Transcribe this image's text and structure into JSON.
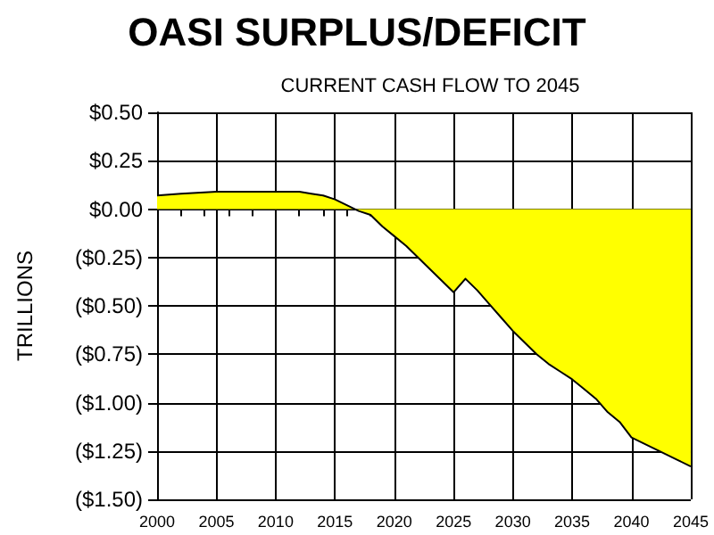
{
  "chart_data": {
    "type": "area",
    "title": "OASI SURPLUS/DEFICIT",
    "subtitle": "CURRENT CASH FLOW TO 2045",
    "ylabel": "TRILLIONS",
    "x": [
      2000,
      2002,
      2005,
      2010,
      2012,
      2013,
      2014,
      2015,
      2016,
      2017,
      2018,
      2019,
      2020,
      2021,
      2022,
      2023,
      2024,
      2025,
      2026,
      2027,
      2028,
      2029,
      2030,
      2031,
      2032,
      2033,
      2034,
      2035,
      2036,
      2037,
      2038,
      2039,
      2040,
      2041,
      2042,
      2043,
      2044,
      2045
    ],
    "series": [
      {
        "color": "#ffff00",
        "values": [
          0.07,
          0.08,
          0.09,
          0.09,
          0.09,
          0.08,
          0.07,
          0.05,
          0.02,
          -0.01,
          -0.03,
          -0.09,
          -0.14,
          -0.19,
          -0.25,
          -0.31,
          -0.37,
          -0.43,
          -0.36,
          -0.42,
          -0.49,
          -0.56,
          -0.63,
          -0.69,
          -0.75,
          -0.8,
          -0.84,
          -0.88,
          -0.93,
          -0.98,
          -1.05,
          -1.1,
          -1.18,
          -1.21,
          -1.24,
          -1.27,
          -1.3,
          -1.33
        ]
      }
    ],
    "xlim": [
      2000,
      2045
    ],
    "xticks": [
      2000,
      2005,
      2010,
      2015,
      2020,
      2025,
      2030,
      2035,
      2040,
      2045
    ],
    "ylim": [
      -1.5,
      0.5
    ],
    "yticks": [
      {
        "value": 0.5,
        "label": "$0.50"
      },
      {
        "value": 0.25,
        "label": "$0.25"
      },
      {
        "value": 0,
        "label": "$0.00"
      },
      {
        "value": -0.25,
        "label": "($0.25)"
      },
      {
        "value": -0.5,
        "label": "($0.50)"
      },
      {
        "value": -0.75,
        "label": "($0.75)"
      },
      {
        "value": -1,
        "label": "($1.00)"
      },
      {
        "value": -1.25,
        "label": "($1.25)"
      },
      {
        "value": -1.5,
        "label": "($1.50)"
      }
    ],
    "grid": true
  }
}
